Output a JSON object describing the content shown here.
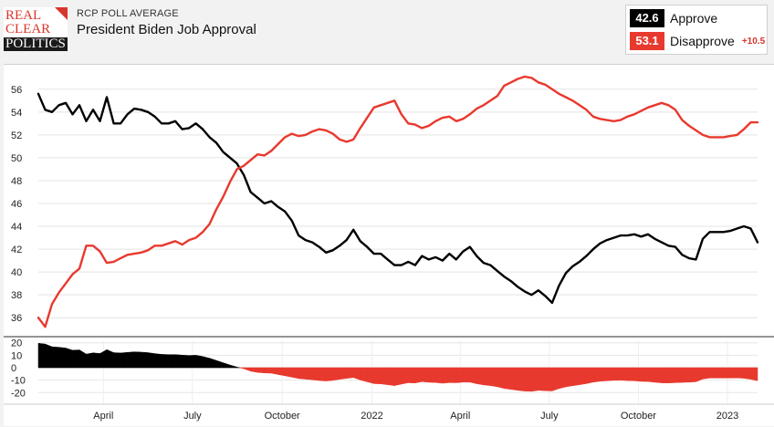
{
  "brand": {
    "logo_lines": [
      "REAL",
      "CLEAR",
      "POLITICS"
    ]
  },
  "header": {
    "kicker": "RCP POLL AVERAGE",
    "title": "President Biden Job Approval"
  },
  "legend": {
    "approve": {
      "value": "42.6",
      "label": "Approve",
      "color": "#000000"
    },
    "disapprove": {
      "value": "53.1",
      "label": "Disapprove",
      "color": "#e8392e",
      "spread": "+10.5"
    }
  },
  "chart_data": {
    "type": "line",
    "x_unit": "week index (0 = late Jan 2021)",
    "x_tick_labels": [
      {
        "label": "April",
        "x": 9.5
      },
      {
        "label": "July",
        "x": 22.5
      },
      {
        "label": "October",
        "x": 35.6
      },
      {
        "label": "2022",
        "x": 48.7
      },
      {
        "label": "April",
        "x": 61.6
      },
      {
        "label": "July",
        "x": 74.6
      },
      {
        "label": "October",
        "x": 87.6
      },
      {
        "label": "2023",
        "x": 100.6
      }
    ],
    "ylim": [
      34.5,
      57.5
    ],
    "y_ticks": [
      36,
      38,
      40,
      42,
      44,
      46,
      48,
      50,
      52,
      54,
      56
    ],
    "series": [
      {
        "name": "Approve",
        "color": "#000000",
        "x": [
          0,
          1,
          2,
          3,
          4,
          5,
          6,
          7,
          8,
          9,
          10,
          11,
          12,
          13,
          14,
          15,
          16,
          17,
          18,
          19,
          20,
          21,
          22,
          23,
          24,
          25,
          26,
          27,
          28,
          29,
          30,
          31,
          32,
          33,
          34,
          35,
          36,
          37,
          38,
          39,
          40,
          41,
          42,
          43,
          44,
          45,
          46,
          47,
          48,
          49,
          50,
          51,
          52,
          53,
          54,
          55,
          56,
          57,
          58,
          59,
          60,
          61,
          62,
          63,
          64,
          65,
          66,
          67,
          68,
          69,
          70,
          71,
          72,
          73,
          74,
          75,
          76,
          77,
          78,
          79,
          80,
          81,
          82,
          83,
          84,
          85,
          86,
          87,
          88,
          89,
          90,
          91,
          92,
          93,
          94,
          95,
          96,
          97,
          98,
          99,
          100,
          101,
          102,
          103,
          104,
          105
        ],
        "values": [
          55.6,
          54.2,
          54.0,
          54.6,
          54.8,
          53.8,
          54.6,
          53.2,
          54.2,
          53.2,
          55.3,
          53.0,
          53.0,
          53.8,
          54.3,
          54.2,
          54.0,
          53.6,
          53.0,
          53.0,
          53.2,
          52.5,
          52.6,
          53.0,
          52.5,
          51.8,
          51.3,
          50.5,
          50.0,
          49.5,
          48.5,
          47.0,
          46.5,
          46.0,
          46.2,
          45.7,
          45.3,
          44.5,
          43.2,
          42.8,
          42.6,
          42.2,
          41.7,
          41.9,
          42.3,
          42.8,
          43.7,
          42.7,
          42.2,
          41.6,
          41.6,
          41.1,
          40.6,
          40.6,
          40.9,
          40.6,
          41.4,
          41.1,
          41.3,
          41.0,
          41.6,
          41.1,
          41.8,
          42.2,
          41.4,
          40.8,
          40.6,
          40.1,
          39.6,
          39.2,
          38.7,
          38.3,
          38.0,
          38.4,
          37.9,
          37.3,
          38.8,
          39.9,
          40.5,
          40.9,
          41.4,
          42.0,
          42.5,
          42.8,
          43.0,
          43.2,
          43.2,
          43.3,
          43.1,
          43.3,
          42.9,
          42.6,
          42.3,
          42.2,
          41.5,
          41.2,
          41.1,
          42.9,
          43.5,
          43.5,
          43.5,
          43.6,
          43.8,
          44.0,
          43.8,
          42.6
        ]
      },
      {
        "name": "Disapprove",
        "color": "#e8392e",
        "x": [
          0,
          1,
          2,
          3,
          4,
          5,
          6,
          7,
          8,
          9,
          10,
          11,
          12,
          13,
          14,
          15,
          16,
          17,
          18,
          19,
          20,
          21,
          22,
          23,
          24,
          25,
          26,
          27,
          28,
          29,
          30,
          31,
          32,
          33,
          34,
          35,
          36,
          37,
          38,
          39,
          40,
          41,
          42,
          43,
          44,
          45,
          46,
          47,
          48,
          49,
          50,
          51,
          52,
          53,
          54,
          55,
          56,
          57,
          58,
          59,
          60,
          61,
          62,
          63,
          64,
          65,
          66,
          67,
          68,
          69,
          70,
          71,
          72,
          73,
          74,
          75,
          76,
          77,
          78,
          79,
          80,
          81,
          82,
          83,
          84,
          85,
          86,
          87,
          88,
          89,
          90,
          91,
          92,
          93,
          94,
          95,
          96,
          97,
          98,
          99,
          100,
          101,
          102,
          103,
          104,
          105
        ],
        "values": [
          36.0,
          35.2,
          37.2,
          38.2,
          39.0,
          39.8,
          40.3,
          42.3,
          42.3,
          41.8,
          40.8,
          40.9,
          41.2,
          41.5,
          41.6,
          41.7,
          41.9,
          42.3,
          42.3,
          42.5,
          42.7,
          42.4,
          42.8,
          43.0,
          43.5,
          44.2,
          45.5,
          46.6,
          47.9,
          49.0,
          49.3,
          49.8,
          50.3,
          50.2,
          50.6,
          51.2,
          51.8,
          52.1,
          51.9,
          52.0,
          52.3,
          52.5,
          52.4,
          52.1,
          51.6,
          51.4,
          51.6,
          52.6,
          53.5,
          54.4,
          54.6,
          54.8,
          55.0,
          53.8,
          53.0,
          52.9,
          52.6,
          52.8,
          53.2,
          53.5,
          53.6,
          53.2,
          53.4,
          53.8,
          54.3,
          54.6,
          55.0,
          55.4,
          56.3,
          56.6,
          56.9,
          57.1,
          57.0,
          56.6,
          56.4,
          56.0,
          55.6,
          55.3,
          55.0,
          54.6,
          54.2,
          53.6,
          53.4,
          53.3,
          53.2,
          53.3,
          53.6,
          53.8,
          54.1,
          54.4,
          54.6,
          54.8,
          54.6,
          54.2,
          53.3,
          52.8,
          52.4,
          52.0,
          51.8,
          51.8,
          51.8,
          51.9,
          52.0,
          52.5,
          53.1,
          53.1
        ]
      }
    ],
    "spread_panel": {
      "type": "area",
      "y_ticks": [
        20,
        10,
        0,
        -10,
        -20
      ],
      "ylim": [
        -22,
        22
      ],
      "description": "Approve minus Disapprove"
    }
  }
}
